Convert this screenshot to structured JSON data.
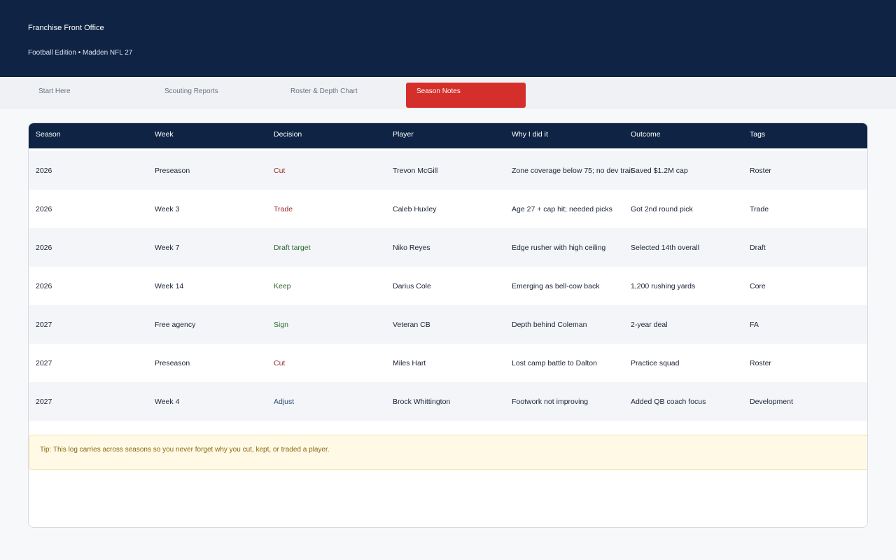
{
  "header": {
    "title": "Franchise Front Office",
    "subtitle": "Football Edition • Madden NFL 27"
  },
  "tabs": [
    {
      "label": "Start Here"
    },
    {
      "label": "Scouting Reports"
    },
    {
      "label": "Roster & Depth Chart"
    },
    {
      "label": "Season Notes",
      "active": true
    }
  ],
  "table": {
    "columns": [
      "Season",
      "Week",
      "Decision",
      "Player",
      "Why I did it",
      "Outcome",
      "Tags"
    ],
    "rows": [
      [
        "2026",
        "Preseason",
        "Cut",
        "Trevon McGill",
        "Zone coverage below 75; no dev trait",
        "Saved $1.2M cap",
        "Roster"
      ],
      [
        "2026",
        "Week 3",
        "Trade",
        "Caleb Huxley",
        "Age 27 + cap hit; needed picks",
        "Got 2nd round pick",
        "Trade"
      ],
      [
        "2026",
        "Week 7",
        "Draft target",
        "Niko Reyes",
        "Edge rusher with high ceiling",
        "Selected 14th overall",
        "Draft"
      ],
      [
        "2026",
        "Week 14",
        "Keep",
        "Darius Cole",
        "Emerging as bell-cow back",
        "1,200 rushing yards",
        "Core"
      ],
      [
        "2027",
        "Free agency",
        "Sign",
        "Veteran CB",
        "Depth behind Coleman",
        "2-year deal",
        "FA"
      ],
      [
        "2027",
        "Preseason",
        "Cut",
        "Miles Hart",
        "Lost camp battle to Dalton",
        "Practice squad",
        "Roster"
      ],
      [
        "2027",
        "Week 4",
        "Adjust",
        "Brock Whittington",
        "Footwork not improving",
        "Added QB coach focus",
        "Development"
      ]
    ]
  },
  "tip": {
    "text": "Tip: This log carries across seasons so you never forget why you cut, kept, or traded a player."
  },
  "colors": {
    "header_bg": "#0f2444",
    "active_tab": "#d52f2b",
    "decision_negative": "#9b2a2a",
    "decision_positive": "#2d6a2f",
    "decision_neutral": "#2d4a72",
    "tip_bg": "#fff9e6"
  }
}
